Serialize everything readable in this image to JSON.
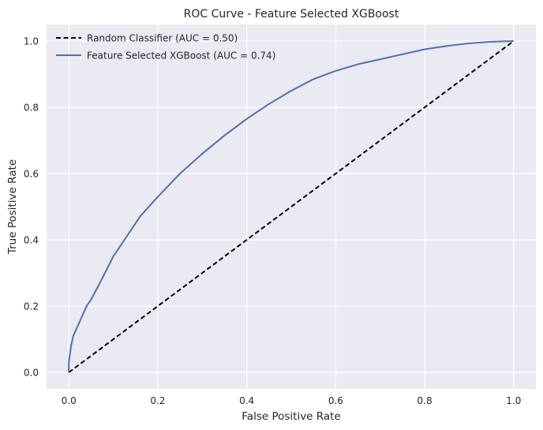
{
  "chart_data": {
    "type": "line",
    "title": "ROC Curve - Feature Selected XGBoost",
    "xlabel": "False Positive Rate",
    "ylabel": "True Positive Rate",
    "xlim": [
      -0.05,
      1.05
    ],
    "ylim": [
      -0.05,
      1.05
    ],
    "grid": true,
    "legend_position": "top-left",
    "x_ticks": [
      0.0,
      0.2,
      0.4,
      0.6,
      0.8,
      1.0
    ],
    "y_ticks": [
      0.0,
      0.2,
      0.4,
      0.6,
      0.8,
      1.0
    ],
    "x_tick_labels": [
      "0.0",
      "0.2",
      "0.4",
      "0.6",
      "0.8",
      "1.0"
    ],
    "y_tick_labels": [
      "0.0",
      "0.2",
      "0.4",
      "0.6",
      "0.8",
      "1.0"
    ],
    "series": [
      {
        "name": "Random Classifier (AUC = 0.50)",
        "color": "#000000",
        "style": "dashed",
        "x": [
          0.0,
          1.0
        ],
        "y": [
          0.0,
          1.0
        ]
      },
      {
        "name": "Feature Selected XGBoost (AUC = 0.74)",
        "color": "#4c72b0",
        "style": "solid",
        "x": [
          0.0,
          0.0,
          0.003,
          0.005,
          0.01,
          0.02,
          0.03,
          0.04,
          0.05,
          0.07,
          0.1,
          0.13,
          0.16,
          0.2,
          0.25,
          0.3,
          0.35,
          0.4,
          0.45,
          0.5,
          0.55,
          0.6,
          0.65,
          0.7,
          0.75,
          0.8,
          0.85,
          0.9,
          0.95,
          1.0
        ],
        "y": [
          0.0,
          0.03,
          0.06,
          0.08,
          0.11,
          0.14,
          0.17,
          0.2,
          0.22,
          0.27,
          0.35,
          0.41,
          0.47,
          0.53,
          0.6,
          0.66,
          0.715,
          0.765,
          0.81,
          0.85,
          0.885,
          0.91,
          0.93,
          0.945,
          0.96,
          0.975,
          0.985,
          0.993,
          0.998,
          1.0
        ]
      }
    ]
  }
}
